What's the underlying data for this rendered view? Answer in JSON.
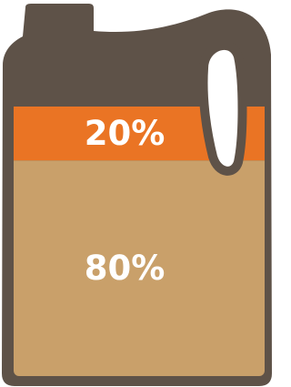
{
  "chart_data": {
    "type": "jug",
    "values": [
      80,
      20
    ],
    "value_labels": [
      "80%",
      "20%"
    ],
    "colors": [
      "#c9a06a",
      "#ea7424"
    ],
    "ylim": [
      0,
      100
    ]
  }
}
